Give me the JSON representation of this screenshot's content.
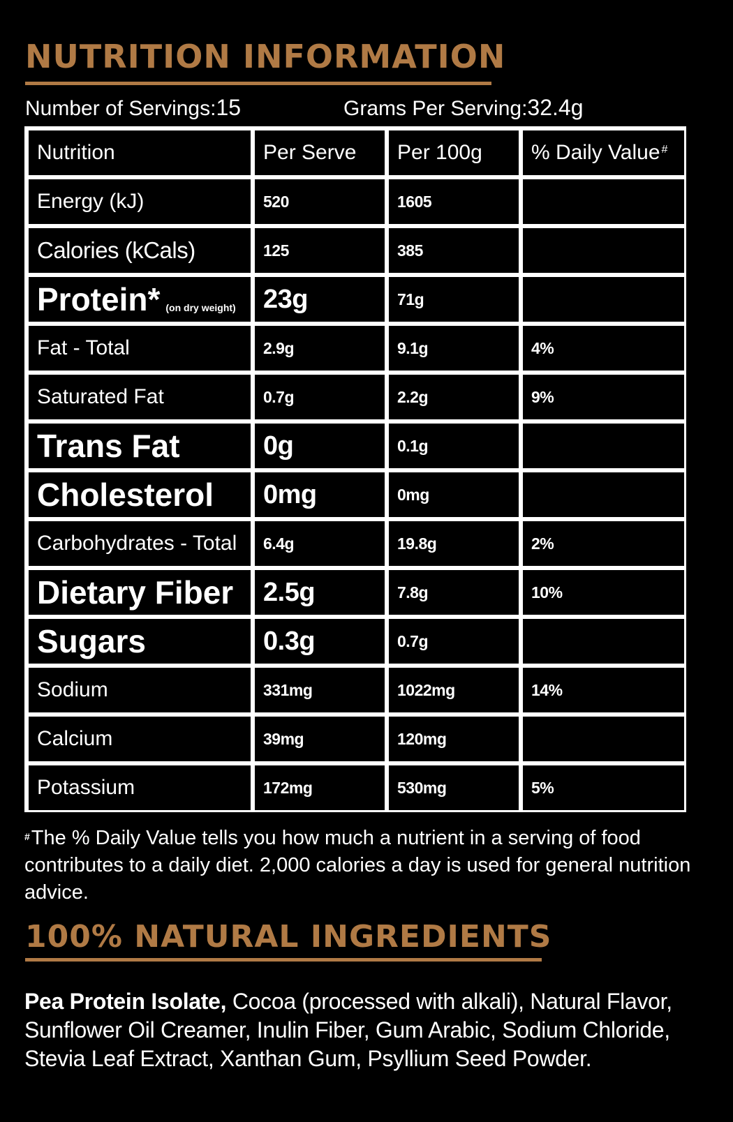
{
  "nutrition_heading": "NUTRITION INFORMATION",
  "servings": {
    "servings_label": "Number of Servings:",
    "servings_value": "15",
    "grams_label": "Grams Per Serving:",
    "grams_value": "32.4g"
  },
  "table": {
    "headers": {
      "nutrition": "Nutrition",
      "per_serve": "Per Serve",
      "per_100g": "Per 100g",
      "daily_value": "% Daily Value",
      "daily_value_mark": "#"
    },
    "rows": [
      {
        "name": "Energy (kJ)",
        "per_serve": "520",
        "per_100g": "1605",
        "daily": ""
      },
      {
        "name": "Calories (kCals)",
        "per_serve": "125",
        "per_100g": "385",
        "daily": ""
      },
      {
        "name": "Protein*",
        "note": "(on dry weight)",
        "per_serve": "23g",
        "per_100g": "71g",
        "daily": ""
      },
      {
        "name": "Fat - Total",
        "per_serve": "2.9g",
        "per_100g": "9.1g",
        "daily": "4%"
      },
      {
        "name": "Saturated Fat",
        "per_serve": "0.7g",
        "per_100g": "2.2g",
        "daily": "9%"
      },
      {
        "name": "Trans Fat",
        "per_serve": "0g",
        "per_100g": "0.1g",
        "daily": ""
      },
      {
        "name": "Cholesterol",
        "per_serve": "0mg",
        "per_100g": "0mg",
        "daily": ""
      },
      {
        "name": "Carbohydrates - Total",
        "per_serve": "6.4g",
        "per_100g": "19.8g",
        "daily": "2%"
      },
      {
        "name": "Dietary Fiber",
        "per_serve": "2.5g",
        "per_100g": "7.8g",
        "daily": "10%"
      },
      {
        "name": "Sugars",
        "per_serve": "0.3g",
        "per_100g": "0.7g",
        "daily": ""
      },
      {
        "name": "Sodium",
        "per_serve": "331mg",
        "per_100g": "1022mg",
        "daily": "14%"
      },
      {
        "name": "Calcium",
        "per_serve": "39mg",
        "per_100g": "120mg",
        "daily": ""
      },
      {
        "name": "Potassium",
        "per_serve": "172mg",
        "per_100g": "530mg",
        "daily": "5%"
      }
    ]
  },
  "footnote": {
    "mark": "#",
    "text": "The % Daily Value tells you how much a nutrient in a serving of food contributes to a daily  diet. 2,000 calories a day is used for general nutrition advice."
  },
  "ingredients_heading": "100% NATURAL INGREDIENTS",
  "ingredients": {
    "lead": "Pea Protein Isolate,",
    "rest": " Cocoa (processed with alkali), Natural Flavor, Sunflower Oil Creamer, Inulin Fiber, Gum Arabic, Sodium Chloride, Stevia Leaf Extract, Xanthan Gum, Psyllium Seed Powder."
  },
  "colors": {
    "background": "#000000",
    "accent": "#b07a45",
    "text": "#ffffff"
  }
}
